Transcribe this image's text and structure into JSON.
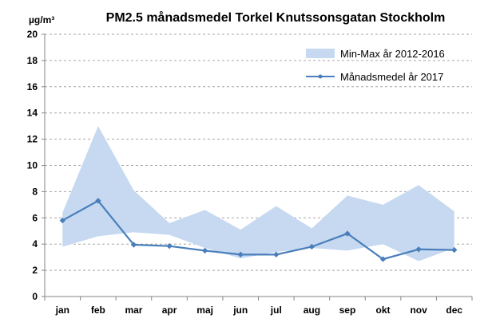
{
  "chart_data": {
    "type": "line",
    "title": "PM2.5 månadsmedel Torkel Knutssonsgatan Stockholm",
    "ylabel": "µg/m³",
    "xlabel": "",
    "ylim": [
      0,
      20
    ],
    "yticks": [
      0,
      2,
      4,
      6,
      8,
      10,
      12,
      14,
      16,
      18,
      20
    ],
    "categories": [
      "jan",
      "feb",
      "mar",
      "apr",
      "maj",
      "jun",
      "jul",
      "aug",
      "sep",
      "okt",
      "nov",
      "dec"
    ],
    "band": {
      "name": "Min-Max år 2012-2016",
      "color": "#c6d9f1",
      "min": [
        3.8,
        4.6,
        4.9,
        4.7,
        3.7,
        2.9,
        3.4,
        3.7,
        3.5,
        4.0,
        2.7,
        3.7
      ],
      "max": [
        6.4,
        13.0,
        8.1,
        5.6,
        6.6,
        5.1,
        6.9,
        5.2,
        7.7,
        7.0,
        8.5,
        6.5
      ]
    },
    "series": [
      {
        "name": "Månadsmedel år 2017",
        "color": "#4a7ebb",
        "values": [
          5.8,
          7.3,
          3.95,
          3.85,
          3.5,
          3.2,
          3.2,
          3.8,
          4.8,
          2.85,
          3.6,
          3.55
        ]
      }
    ],
    "grid": "horizontal dashed",
    "legend_position": "top-right"
  }
}
